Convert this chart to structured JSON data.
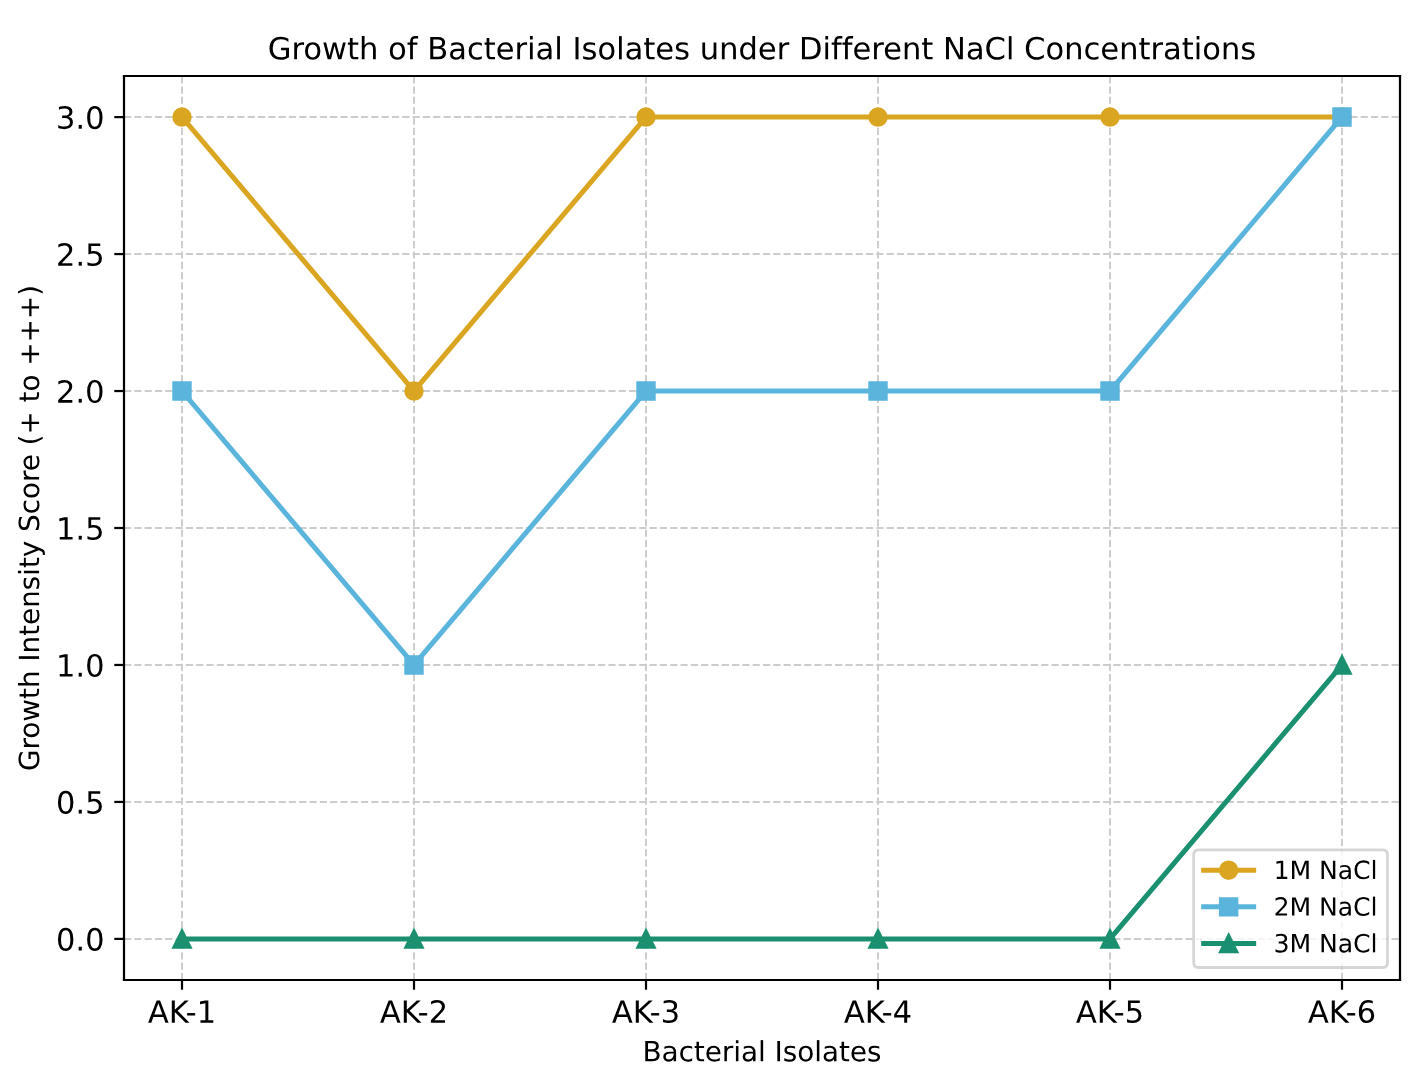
{
  "chart_data": {
    "type": "line",
    "title": "Growth of Bacterial Isolates under Different NaCl Concentrations",
    "xlabel": "Bacterial Isolates",
    "ylabel": "Growth Intensity Score (+ to +++)",
    "categories": [
      "AK-1",
      "AK-2",
      "AK-3",
      "AK-4",
      "AK-5",
      "AK-6"
    ],
    "series": [
      {
        "name": "1M NaCl",
        "color": "#daa520",
        "marker": "circle",
        "values": [
          3,
          2,
          3,
          3,
          3,
          3
        ]
      },
      {
        "name": "2M NaCl",
        "color": "#5ab4dc",
        "marker": "square",
        "values": [
          2,
          1,
          2,
          2,
          2,
          3
        ]
      },
      {
        "name": "3M NaCl",
        "color": "#1a9070",
        "marker": "triangle",
        "values": [
          0,
          0,
          0,
          0,
          0,
          1
        ]
      }
    ],
    "ylim": [
      -0.15,
      3.15
    ],
    "yticks": [
      {
        "value": 0,
        "label": "0.0"
      },
      {
        "value": 0.5,
        "label": "0.5"
      },
      {
        "value": 1,
        "label": "1.0"
      },
      {
        "value": 1.5,
        "label": "1.5"
      },
      {
        "value": 2,
        "label": "2.0"
      },
      {
        "value": 2.5,
        "label": "2.5"
      },
      {
        "value": 3,
        "label": "3.0"
      }
    ],
    "grid": true,
    "legend": "bottom right",
    "line_style": "solid"
  }
}
